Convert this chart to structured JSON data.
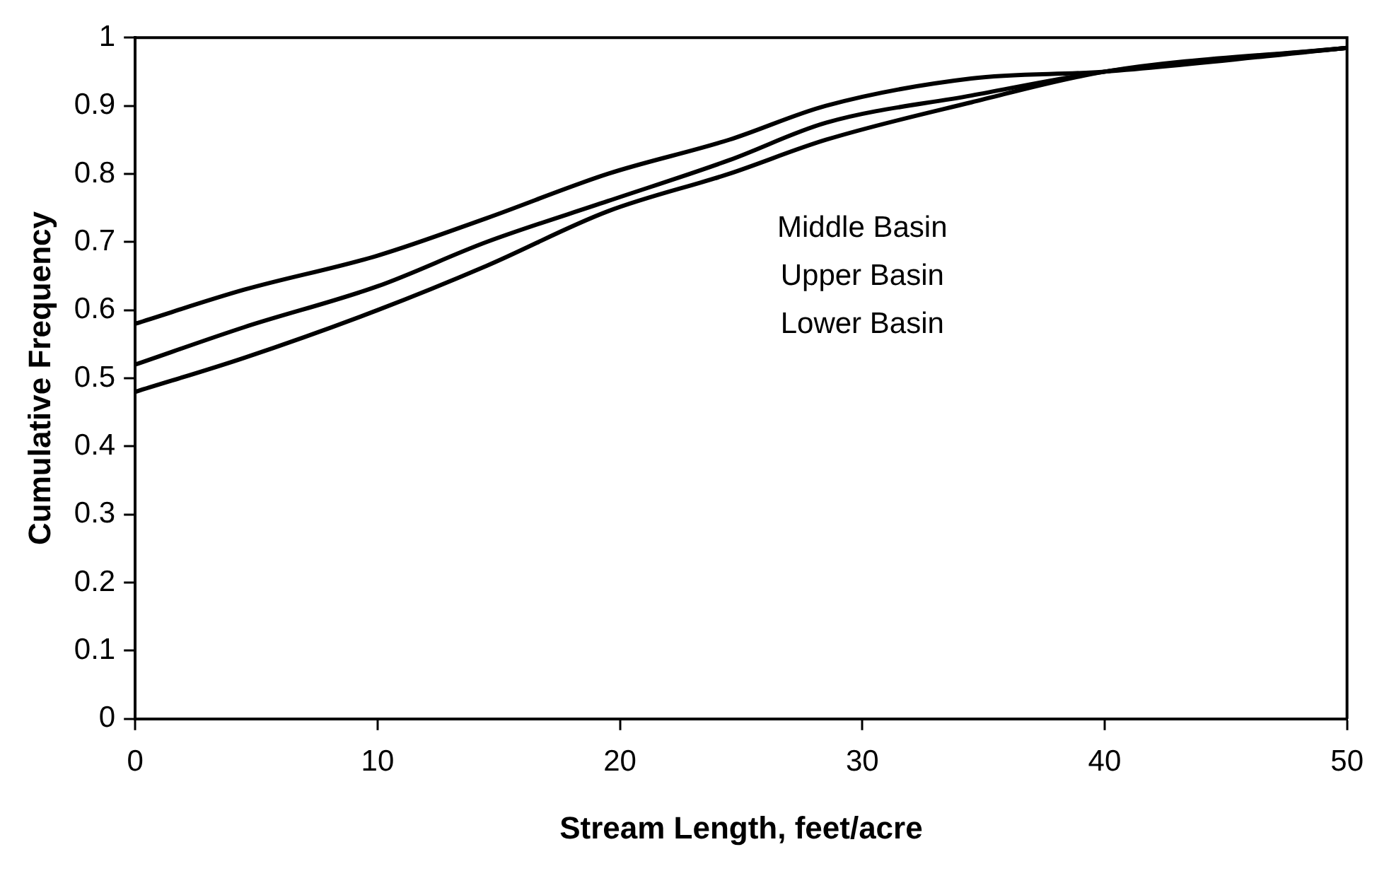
{
  "chart_data": {
    "type": "line",
    "xlabel": "Stream Length, feet/acre",
    "ylabel": "Cumulative Frequency",
    "xlim": [
      0,
      50
    ],
    "xticks": [
      0,
      10,
      20,
      30,
      40,
      50
    ],
    "ylim": [
      0,
      1
    ],
    "yticks": [
      0,
      0.1,
      0.2,
      0.3,
      0.4,
      0.5,
      0.6,
      0.7,
      0.8,
      0.9,
      1
    ],
    "annotations": [
      "Middle Basin",
      "Upper Basin",
      "Lower Basin"
    ],
    "grid": false,
    "legend": false,
    "marker": "none",
    "line_style": "solid",
    "x": [
      0,
      4.5,
      10,
      14.5,
      19.5,
      24.5,
      28.5,
      34.5,
      40,
      50
    ],
    "series": [
      {
        "color": "#000000",
        "values": [
          0.58,
          0.63,
          0.68,
          0.735,
          0.8,
          0.85,
          0.9,
          0.94,
          0.95,
          0.985
        ]
      },
      {
        "color": "#000000",
        "values": [
          0.52,
          0.575,
          0.635,
          0.7,
          0.76,
          0.82,
          0.875,
          0.915,
          0.95,
          0.985
        ]
      },
      {
        "color": "#000000",
        "values": [
          0.48,
          0.53,
          0.6,
          0.665,
          0.745,
          0.8,
          0.85,
          0.905,
          0.95,
          0.985
        ]
      }
    ]
  }
}
